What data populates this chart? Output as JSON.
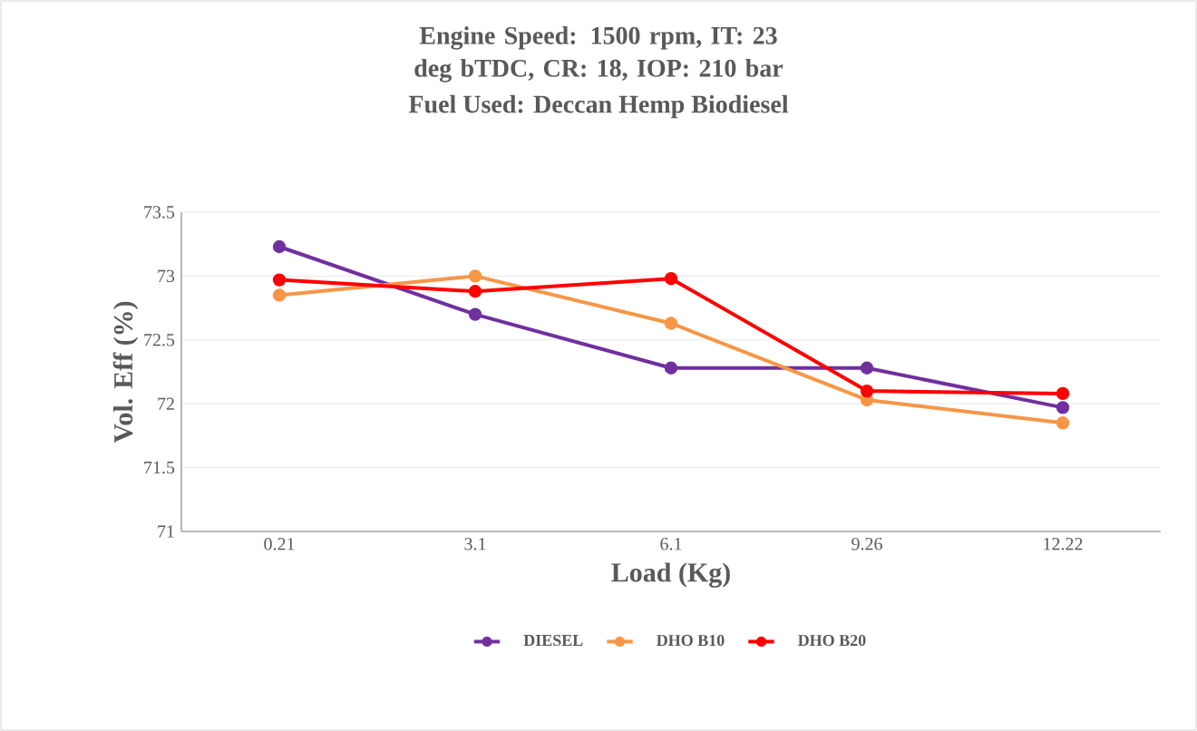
{
  "chart_data": {
    "type": "line",
    "title": "Engine Speed: 1500 rpm, IT: 23 deg bTDC, CR: 18, IOP: 210 bar",
    "subtitle": "Fuel Used: Deccan Hemp Biodiesel",
    "xlabel": "Load (Kg)",
    "ylabel": "Vol. Eff (%)",
    "categories": [
      "0.21",
      "3.1",
      "6.1",
      "9.26",
      "12.22"
    ],
    "series": [
      {
        "name": "DIESEL",
        "color": "#7030a0",
        "values": [
          73.23,
          72.7,
          72.28,
          72.28,
          71.97
        ]
      },
      {
        "name": "DHO B10",
        "color": "#f79646",
        "values": [
          72.85,
          73.0,
          72.63,
          72.03,
          71.85
        ]
      },
      {
        "name": "DHO B20",
        "color": "#ff0000",
        "values": [
          72.97,
          72.88,
          72.98,
          72.1,
          72.08
        ]
      }
    ],
    "ylim": [
      71,
      73.5
    ],
    "yticks": [
      71,
      71.5,
      72,
      72.5,
      73,
      73.5
    ],
    "grid": "y",
    "legend": "bottom",
    "marker": "circle",
    "line_style": "solid"
  }
}
